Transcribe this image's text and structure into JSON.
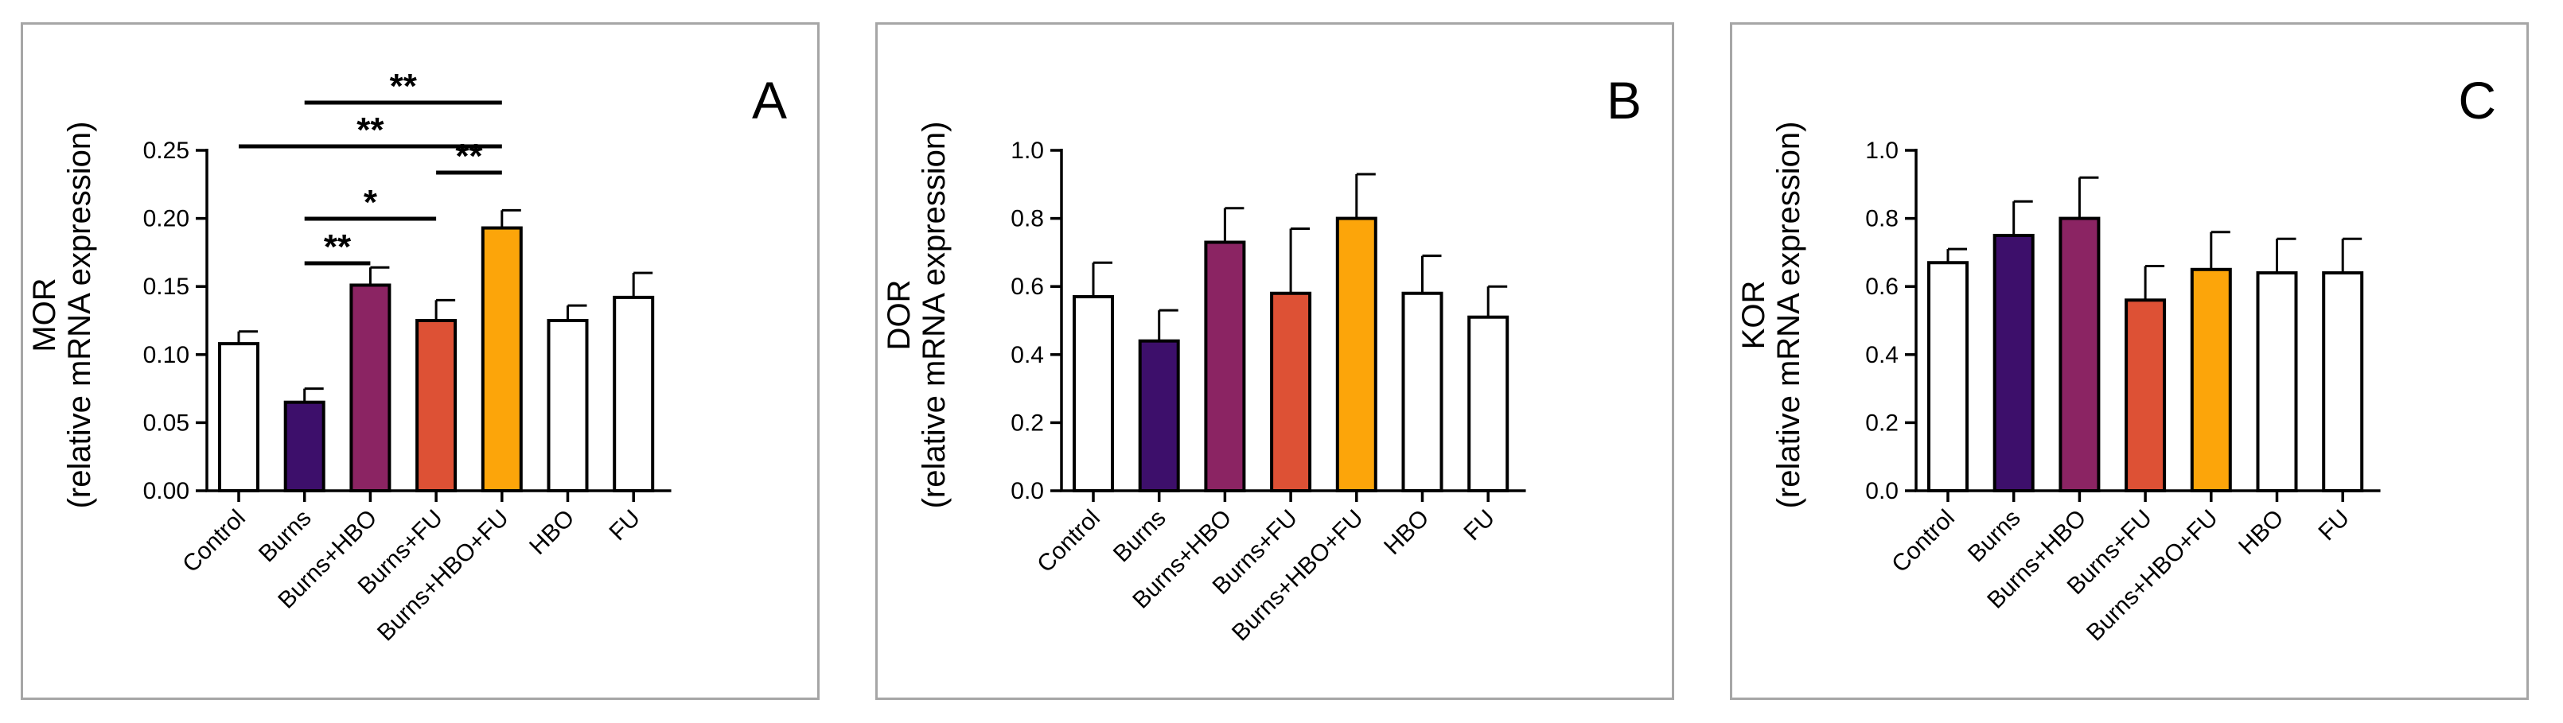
{
  "colors": {
    "white": "#ffffff",
    "burns": "#3d0f6b",
    "burns_hbo": "#8b2463",
    "burns_fu": "#dd5135",
    "burns_hbo_fu": "#fca50a",
    "axis": "#000000",
    "border": "#a6a6a6"
  },
  "chart_data": [
    {
      "type": "bar",
      "panel_letter": "A",
      "ylabel_line1": "MOR",
      "ylabel_line2": "(relative mRNA expression)",
      "categories": [
        "Control",
        "Burns",
        "Burns+HBO",
        "Burns+FU",
        "Burns+HBO+FU",
        "HBO",
        "FU"
      ],
      "values": [
        0.108,
        0.065,
        0.151,
        0.125,
        0.193,
        0.125,
        0.142
      ],
      "errors": [
        0.009,
        0.01,
        0.013,
        0.015,
        0.013,
        0.011,
        0.018
      ],
      "bar_colors": [
        "#ffffff",
        "#3d0f6b",
        "#8b2463",
        "#dd5135",
        "#fca50a",
        "#ffffff",
        "#ffffff"
      ],
      "ylim": [
        0,
        0.25
      ],
      "yticks": [
        0.0,
        0.05,
        0.1,
        0.15,
        0.2,
        0.25
      ],
      "tick_decimals": 2,
      "significance": [
        {
          "from": 1,
          "to": 4,
          "label": "**"
        },
        {
          "from": 0,
          "to": 4,
          "label": "**"
        },
        {
          "from": 3,
          "to": 4,
          "label": "**"
        },
        {
          "from": 1,
          "to": 3,
          "label": "*"
        },
        {
          "from": 1,
          "to": 2,
          "label": "**"
        }
      ]
    },
    {
      "type": "bar",
      "panel_letter": "B",
      "ylabel_line1": "DOR",
      "ylabel_line2": "(relative mRNA expression)",
      "categories": [
        "Control",
        "Burns",
        "Burns+HBO",
        "Burns+FU",
        "Burns+HBO+FU",
        "HBO",
        "FU"
      ],
      "values": [
        0.57,
        0.44,
        0.73,
        0.58,
        0.8,
        0.58,
        0.51
      ],
      "errors": [
        0.1,
        0.09,
        0.1,
        0.19,
        0.13,
        0.11,
        0.09
      ],
      "bar_colors": [
        "#ffffff",
        "#3d0f6b",
        "#8b2463",
        "#dd5135",
        "#fca50a",
        "#ffffff",
        "#ffffff"
      ],
      "ylim": [
        0,
        1.0
      ],
      "yticks": [
        0.0,
        0.2,
        0.4,
        0.6,
        0.8,
        1.0
      ],
      "tick_decimals": 1,
      "significance": []
    },
    {
      "type": "bar",
      "panel_letter": "C",
      "ylabel_line1": "KOR",
      "ylabel_line2": "(relative mRNA expression)",
      "categories": [
        "Control",
        "Burns",
        "Burns+HBO",
        "Burns+FU",
        "Burns+HBO+FU",
        "HBO",
        "FU"
      ],
      "values": [
        0.67,
        0.75,
        0.8,
        0.56,
        0.65,
        0.64,
        0.64
      ],
      "errors": [
        0.04,
        0.1,
        0.12,
        0.1,
        0.11,
        0.1,
        0.1
      ],
      "bar_colors": [
        "#ffffff",
        "#3d0f6b",
        "#8b2463",
        "#dd5135",
        "#fca50a",
        "#ffffff",
        "#ffffff"
      ],
      "ylim": [
        0,
        1.0
      ],
      "yticks": [
        0.0,
        0.2,
        0.4,
        0.6,
        0.8,
        1.0
      ],
      "tick_decimals": 1,
      "significance": []
    }
  ]
}
